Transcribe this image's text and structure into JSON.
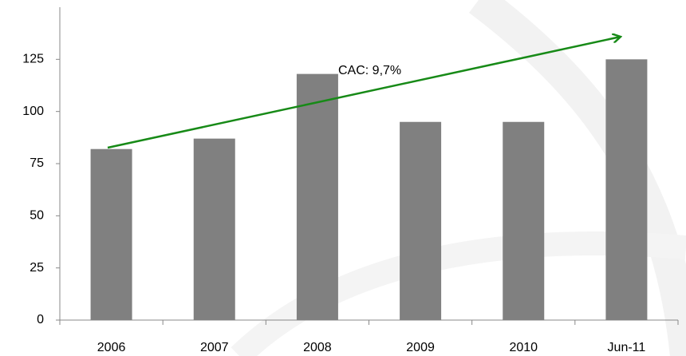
{
  "chart_data": {
    "type": "bar",
    "categories": [
      "2006",
      "2007",
      "2008",
      "2009",
      "2010",
      "Jun-11"
    ],
    "values": [
      82,
      87,
      118,
      95,
      95,
      125
    ],
    "color": "#808080",
    "ylim": [
      0,
      150
    ],
    "yticks": [
      0,
      25,
      50,
      75,
      100,
      125
    ],
    "grid": false,
    "annotation": "CAC: 9,7%"
  }
}
